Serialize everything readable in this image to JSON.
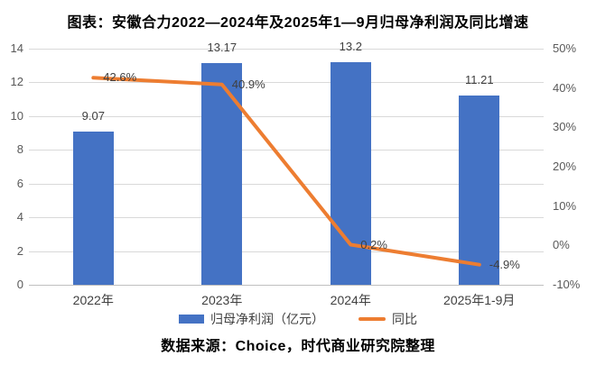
{
  "title": "图表：安徽合力2022—2024年及2025年1—9月归母净利润及同比增速",
  "source_note": "数据来源：Choice，时代商业研究院整理",
  "colors": {
    "bar": "#4472c4",
    "line": "#ed7d31",
    "gridline": "#d9d9d9",
    "axis_line": "#bfbfbf",
    "axis_text": "#595959",
    "data_label_text": "#404040",
    "title_text": "#000000"
  },
  "chart_data": {
    "type": "bar",
    "subtype": "combo-bar-line",
    "categories": [
      "2022年",
      "2023年",
      "2024年",
      "2025年1-9月"
    ],
    "series": [
      {
        "name": "归母净利润（亿元）",
        "chart": "bar",
        "axis": "left",
        "values": [
          9.07,
          13.17,
          13.2,
          11.21
        ],
        "value_labels": [
          "9.07",
          "13.17",
          "13.2",
          "11.21"
        ]
      },
      {
        "name": "同比",
        "chart": "line",
        "axis": "right",
        "values": [
          42.6,
          40.9,
          0.2,
          -4.9
        ],
        "value_labels": [
          "42.6%",
          "40.9%",
          "0.2%",
          "-4.9%"
        ]
      }
    ],
    "left_axis": {
      "min": 0,
      "max": 14,
      "step": 2,
      "tick_labels": [
        "0",
        "2",
        "4",
        "6",
        "8",
        "10",
        "12",
        "14"
      ]
    },
    "right_axis": {
      "min": -10,
      "max": 50,
      "step": 10,
      "tick_labels": [
        "-10%",
        "0%",
        "10%",
        "20%",
        "30%",
        "40%",
        "50%"
      ]
    },
    "grid": true,
    "legend_position": "bottom",
    "legend": [
      {
        "label": "归母净利润（亿元）",
        "swatch": "bar"
      },
      {
        "label": "同比",
        "swatch": "line"
      }
    ]
  }
}
